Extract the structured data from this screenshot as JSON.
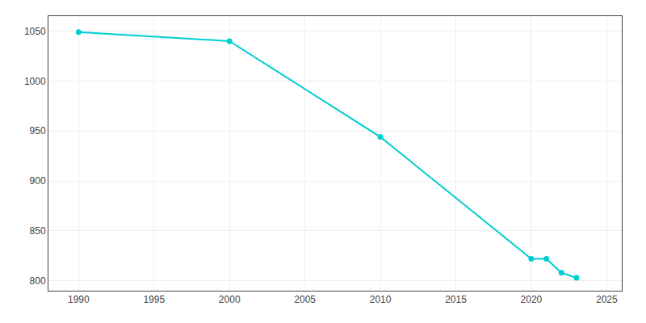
{
  "chart_data": {
    "type": "line",
    "x": [
      1990,
      2000,
      2010,
      2020,
      2021,
      2022,
      2023
    ],
    "values": [
      1049,
      1040,
      944,
      822,
      822,
      808,
      803
    ],
    "color": "#00CED1",
    "marker": "circle",
    "xlim": [
      1988,
      2026
    ],
    "xticks": [
      1990,
      1995,
      2000,
      2005,
      2010,
      2015,
      2020,
      2025
    ],
    "ylim": [
      790,
      1065
    ],
    "yticks": [
      800,
      850,
      900,
      950,
      1000,
      1050
    ],
    "grid": true
  }
}
